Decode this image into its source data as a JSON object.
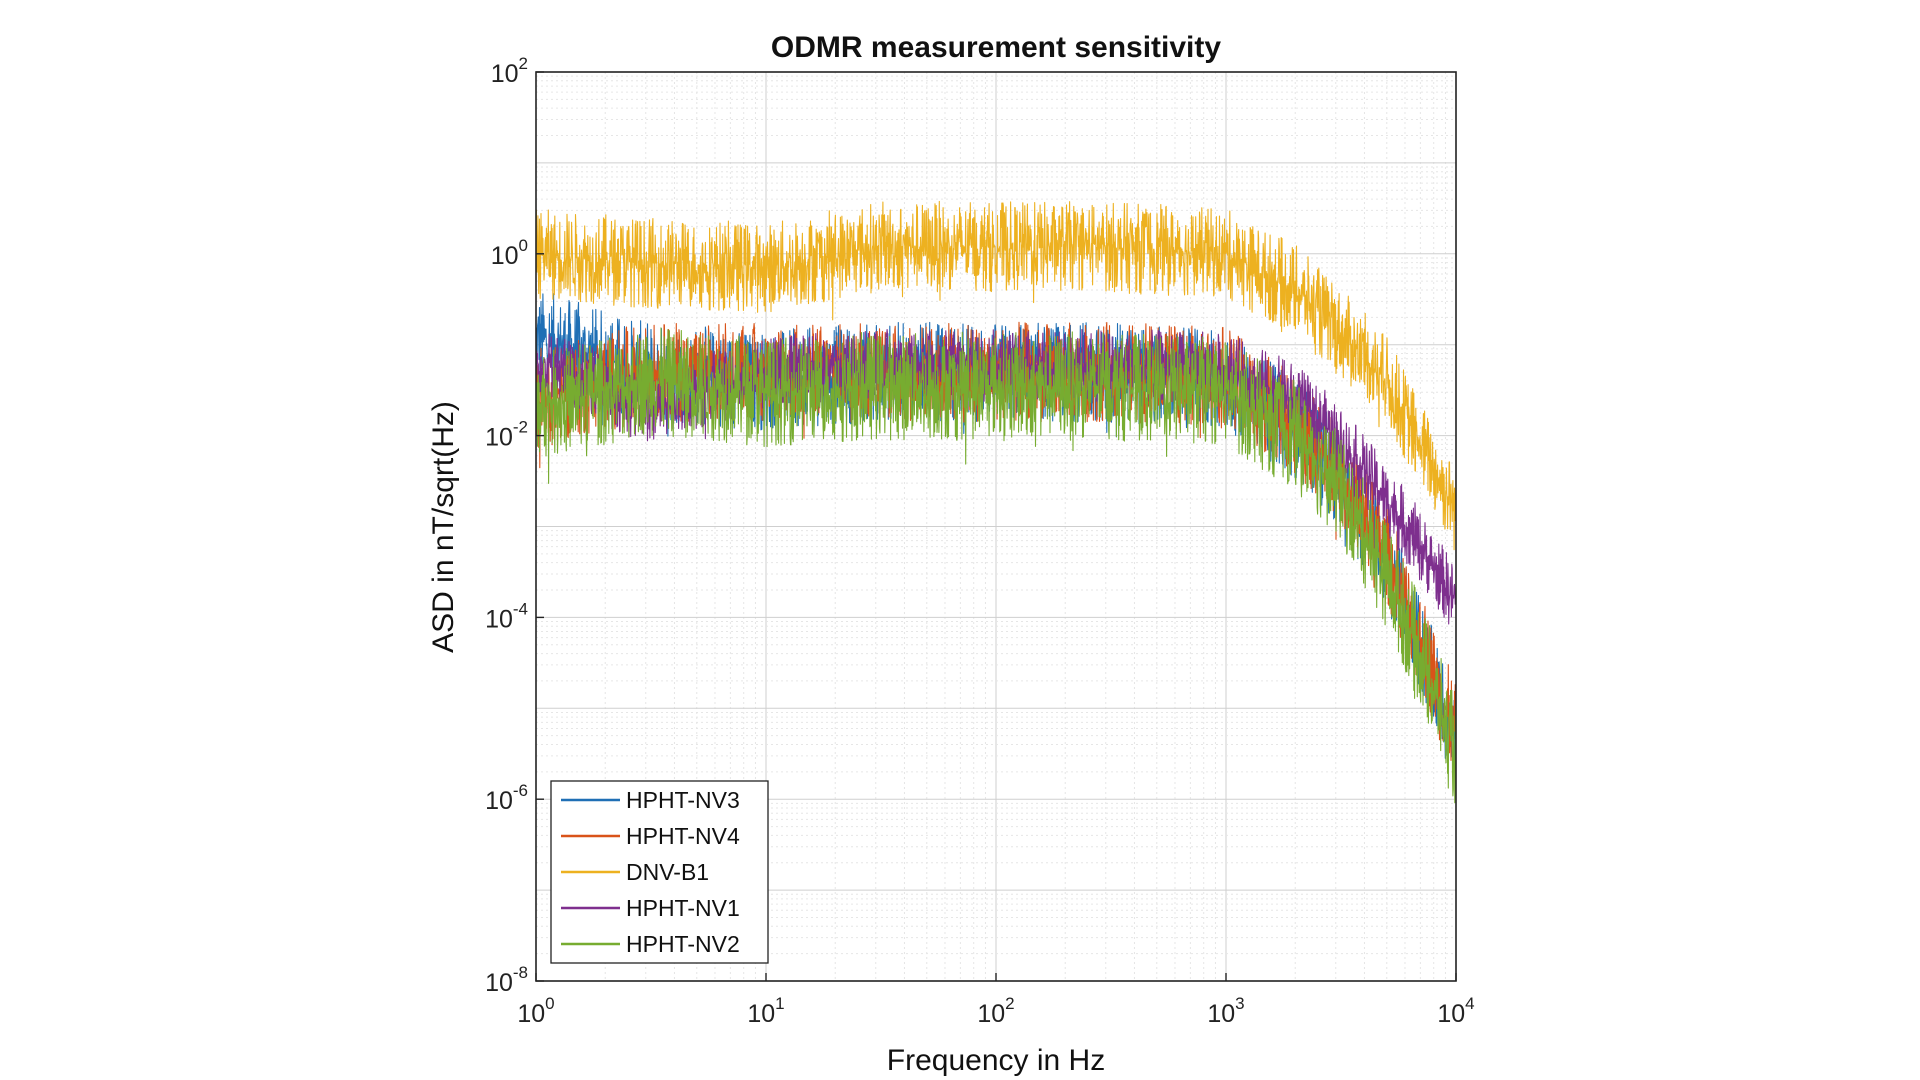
{
  "chart_data": {
    "type": "line",
    "title": "ODMR measurement sensitivity",
    "xlabel": "Frequency in Hz",
    "ylabel": "ASD in nT/sqrt(Hz)",
    "x_scale": "log",
    "y_scale": "log",
    "xlim": [
      1,
      10000
    ],
    "ylim": [
      1e-08,
      100
    ],
    "grid": true,
    "legend_position": "bottom-left",
    "x_ticks": [
      {
        "base": "10",
        "exp": "0",
        "value": 1
      },
      {
        "base": "10",
        "exp": "1",
        "value": 10
      },
      {
        "base": "10",
        "exp": "2",
        "value": 100
      },
      {
        "base": "10",
        "exp": "3",
        "value": 1000
      },
      {
        "base": "10",
        "exp": "4",
        "value": 10000
      }
    ],
    "y_ticks": [
      {
        "base": "10",
        "exp": "-8",
        "value": 1e-08
      },
      {
        "base": "10",
        "exp": "-6",
        "value": 1e-06
      },
      {
        "base": "10",
        "exp": "-4",
        "value": 0.0001
      },
      {
        "base": "10",
        "exp": "-2",
        "value": 0.01
      },
      {
        "base": "10",
        "exp": "0",
        "value": 1
      },
      {
        "base": "10",
        "exp": "2",
        "value": 100
      }
    ],
    "series": [
      {
        "name": "HPHT-NV3",
        "color": "#1f6fb5",
        "x": [
          1,
          3,
          10,
          30,
          100,
          300,
          1000,
          2000,
          3000,
          5000,
          7000,
          10000
        ],
        "y": [
          0.12,
          0.05,
          0.04,
          0.05,
          0.05,
          0.05,
          0.04,
          0.012,
          0.004,
          0.00045,
          5e-05,
          4e-06
        ],
        "spread_dec": 0.55
      },
      {
        "name": "HPHT-NV4",
        "color": "#d95319",
        "x": [
          1,
          3,
          10,
          30,
          100,
          300,
          1000,
          2000,
          3000,
          5000,
          7000,
          10000
        ],
        "y": [
          0.025,
          0.05,
          0.05,
          0.05,
          0.05,
          0.05,
          0.045,
          0.013,
          0.0045,
          0.0005,
          6e-05,
          5e-06
        ],
        "spread_dec": 0.55
      },
      {
        "name": "DNV-B1",
        "color": "#edb120",
        "x": [
          1,
          3,
          10,
          30,
          100,
          300,
          1000,
          2000,
          3000,
          5000,
          7000,
          10000
        ],
        "y": [
          1.0,
          0.8,
          0.7,
          1.2,
          1.2,
          1.2,
          1.0,
          0.4,
          0.15,
          0.04,
          0.008,
          0.0015
        ],
        "spread_dec": 0.5
      },
      {
        "name": "HPHT-NV1",
        "color": "#7e2f8e",
        "x": [
          1,
          3,
          10,
          30,
          100,
          300,
          1000,
          2000,
          3000,
          5000,
          7000,
          10000
        ],
        "y": [
          0.07,
          0.02,
          0.05,
          0.06,
          0.06,
          0.06,
          0.055,
          0.025,
          0.01,
          0.002,
          0.0006,
          0.00015
        ],
        "spread_dec": 0.4
      },
      {
        "name": "HPHT-NV2",
        "color": "#77ac30",
        "x": [
          1,
          3,
          10,
          30,
          100,
          300,
          1000,
          2000,
          3000,
          5000,
          7000,
          10000
        ],
        "y": [
          0.02,
          0.04,
          0.03,
          0.035,
          0.035,
          0.035,
          0.03,
          0.01,
          0.003,
          0.0003,
          4e-05,
          3e-06
        ],
        "spread_dec": 0.6
      }
    ]
  }
}
